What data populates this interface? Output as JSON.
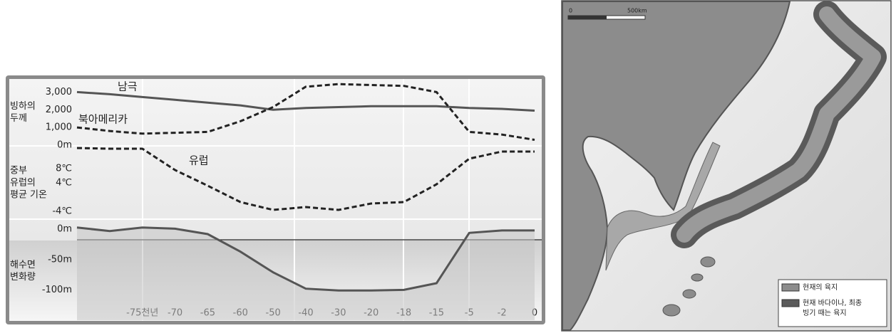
{
  "chart_data": [
    {
      "type": "line",
      "ylabel": [
        "빙하의",
        "두께"
      ],
      "ylim": [
        0,
        3700
      ],
      "yticks": [
        {
          "value": 0,
          "label": "0m"
        },
        {
          "value": 1000,
          "label": "1,000"
        },
        {
          "value": 2000,
          "label": "2,000"
        },
        {
          "value": 3000,
          "label": "3,000"
        }
      ],
      "series": [
        {
          "name": "남극",
          "color": "#555555",
          "dash": false,
          "values": [
            3000,
            2880,
            2720,
            2560,
            2400,
            2250,
            2000,
            2100,
            2150,
            2200,
            2200,
            2200,
            2100,
            2050,
            1950
          ]
        },
        {
          "name": "북아메리카",
          "color": "#222222",
          "dash": true,
          "values": [
            1000,
            800,
            650,
            700,
            750,
            1350,
            2150,
            3300,
            3450,
            3400,
            3350,
            3000,
            750,
            600,
            300
          ]
        }
      ]
    },
    {
      "type": "line",
      "ylabel": [
        "중부",
        "유럽의",
        "평균 기온"
      ],
      "ylim": [
        -6,
        14
      ],
      "yticks": [
        {
          "value": 8,
          "label": "8℃"
        },
        {
          "value": 4,
          "label": "4℃"
        },
        {
          "value": -4,
          "label": "-4℃"
        }
      ],
      "series": [
        {
          "name": "유럽",
          "color": "#222222",
          "dash": true,
          "values": [
            13.8,
            13.6,
            13.6,
            7.6,
            3.2,
            -1.4,
            -3.6,
            -2.8,
            -3.6,
            -1.8,
            -1.4,
            3.6,
            10.8,
            12.8,
            12.8
          ]
        }
      ]
    },
    {
      "type": "area",
      "ylabel": [
        "해수면",
        "변화량"
      ],
      "ylim": [
        -150,
        12
      ],
      "yticks": [
        {
          "value": 0,
          "label": "0m"
        },
        {
          "value": -50,
          "label": "-50m"
        },
        {
          "value": -100,
          "label": "-100m"
        }
      ],
      "categories": [
        null,
        null,
        "-75천년",
        "-70",
        "-65",
        "-60",
        "-50",
        "-40",
        "-30",
        "-20",
        "-18",
        "-15",
        "-5",
        "-2",
        "0"
      ],
      "series": [
        {
          "color": "#555555",
          "values": [
            3,
            -3,
            3,
            1,
            -8,
            -37,
            -71,
            -98,
            -101,
            -101,
            -100,
            -89,
            -6,
            -2,
            -2
          ]
        }
      ]
    }
  ],
  "map": {
    "scale_labels": [
      "0",
      "500km"
    ],
    "legend": [
      {
        "label": [
          "현재의 육지"
        ],
        "color": "#8c8c8c"
      },
      {
        "label": [
          "현재 바다이나, 최종",
          "빙기 때는 육지"
        ],
        "color": "#5a5a5a"
      }
    ]
  }
}
